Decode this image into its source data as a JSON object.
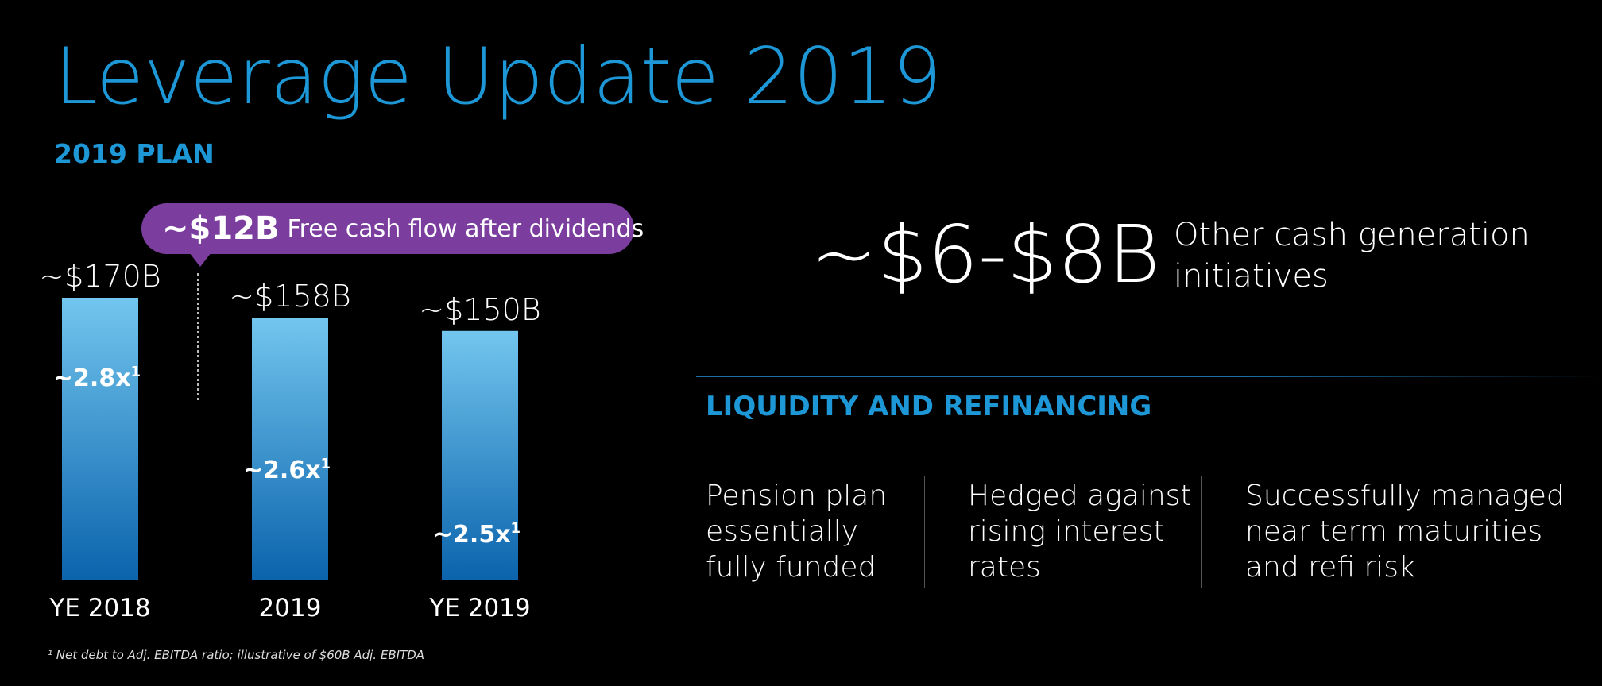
{
  "title": "Leverage Update 2019",
  "subtitle": "2019 PLAN",
  "callout": {
    "amount": "~$12B",
    "text": "Free cash flow after dividends",
    "color": "#7b3e9e"
  },
  "chart_data": {
    "type": "bar",
    "categories": [
      "YE 2018",
      "2019",
      "YE 2019"
    ],
    "values": [
      170,
      158,
      150
    ],
    "value_labels": [
      "~$170B",
      "~$158B",
      "~$150B"
    ],
    "ratio_labels": [
      "~2.8x",
      "~2.6x",
      "~2.5x"
    ],
    "ratio_superscript": "1",
    "unit": "$B",
    "bar_color_top": "#72c6ee",
    "bar_color_bottom": "#0b63ac",
    "title": "",
    "xlabel": "",
    "ylabel": "",
    "grid": false
  },
  "other_cash": {
    "range": "~$6-$8B",
    "text": "Other cash generation initiatives"
  },
  "liquidity": {
    "heading": "LIQUIDITY AND REFINANCING",
    "points": [
      "Pension plan essentially fully funded",
      "Hedged against rising interest rates",
      "Successfully managed near term maturities and refi risk"
    ]
  },
  "footnote": "¹ Net debt to Adj. EBITDA ratio; illustrative of  $60B  Adj. EBITDA",
  "colors": {
    "accent": "#1d97d6",
    "background": "#000000"
  }
}
